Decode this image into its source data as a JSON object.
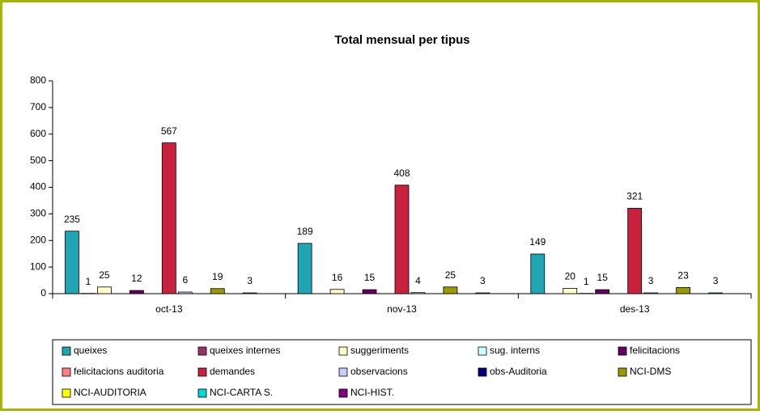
{
  "chart_data": {
    "type": "bar",
    "title": "Total mensual per tipus",
    "categories": [
      "oct-13",
      "nov-13",
      "des-13"
    ],
    "ylim": [
      0,
      800
    ],
    "yticks": [
      0,
      100,
      200,
      300,
      400,
      500,
      600,
      700,
      800
    ],
    "legend": "bottom",
    "series": [
      {
        "name": "queixes",
        "color": "#1fa5b4",
        "values": [
          235,
          189,
          149
        ]
      },
      {
        "name": "queixes internes",
        "color": "#993366",
        "values": [
          1,
          null,
          null
        ]
      },
      {
        "name": "suggeriments",
        "color": "#ffffcc",
        "values": [
          25,
          16,
          20
        ]
      },
      {
        "name": "sug. interns",
        "color": "#ccffff",
        "values": [
          null,
          null,
          1
        ]
      },
      {
        "name": "felicitacions",
        "color": "#660066",
        "values": [
          12,
          15,
          15
        ]
      },
      {
        "name": "felicitacions auditoria",
        "color": "#ff8080",
        "values": [
          null,
          null,
          null
        ]
      },
      {
        "name": "demandes",
        "color": "#c8213e",
        "values": [
          567,
          408,
          321
        ]
      },
      {
        "name": "observacions",
        "color": "#ccccff",
        "values": [
          6,
          4,
          3
        ]
      },
      {
        "name": "obs-Auditoria",
        "color": "#000080",
        "values": [
          null,
          null,
          null
        ]
      },
      {
        "name": "NCI-DMS",
        "color": "#999900",
        "values": [
          19,
          25,
          23
        ]
      },
      {
        "name": "NCI-AUDITORIA",
        "color": "#ffff00",
        "values": [
          null,
          null,
          null
        ]
      },
      {
        "name": "NCI-CARTA S.",
        "color": "#00d8d8",
        "values": [
          3,
          3,
          3
        ]
      },
      {
        "name": "NCI-HIST.",
        "color": "#800080",
        "values": [
          null,
          null,
          null
        ]
      }
    ]
  }
}
